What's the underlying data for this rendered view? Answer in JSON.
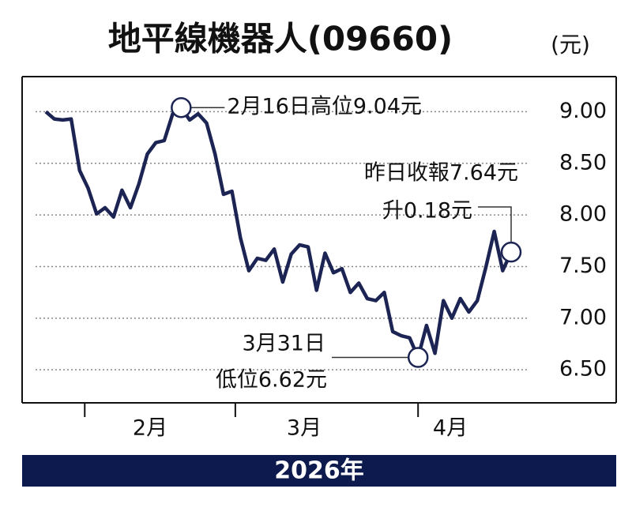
{
  "chart_data": {
    "type": "line",
    "title": "地平線機器人(09660)",
    "unit_label": "(元)",
    "period_label": "2026年",
    "month_labels": [
      "2月",
      "3月",
      "4月"
    ],
    "annotations": [
      "2月16日高位9.04元",
      "昨日收報7.64元",
      "升0.18元",
      "3月31日",
      "低位6.62元"
    ],
    "color": "#1c2453",
    "categories": [
      null,
      null,
      null,
      null,
      null,
      null,
      null,
      null,
      null,
      null,
      null,
      null,
      null,
      null,
      null,
      null,
      null,
      null,
      null,
      null,
      null,
      null,
      null,
      null,
      null,
      null,
      null,
      null,
      null,
      null,
      null,
      null,
      null,
      null,
      null,
      null,
      null,
      null,
      null,
      null,
      null,
      null,
      null,
      null,
      null,
      null,
      null,
      null,
      null,
      null,
      null,
      null,
      null,
      null,
      null,
      null
    ],
    "values": [
      9.0,
      8.93,
      8.92,
      8.93,
      8.43,
      8.26,
      8.01,
      8.07,
      7.98,
      8.24,
      8.07,
      8.3,
      8.59,
      8.7,
      8.72,
      8.98,
      9.04,
      8.92,
      8.98,
      8.89,
      8.59,
      8.2,
      8.23,
      7.78,
      7.46,
      7.58,
      7.56,
      7.67,
      7.35,
      7.62,
      7.71,
      7.69,
      7.27,
      7.63,
      7.44,
      7.48,
      7.25,
      7.34,
      7.19,
      7.17,
      7.25,
      6.87,
      6.83,
      6.81,
      6.62,
      6.93,
      6.66,
      7.17,
      7.0,
      7.19,
      7.06,
      7.17,
      7.49,
      7.84,
      7.46,
      7.64
    ],
    "ylim": [
      6.18,
      9.34
    ],
    "yticks": [
      {
        "value": 9,
        "label": "9.00"
      },
      {
        "value": 8.5,
        "label": "8.50"
      },
      {
        "value": 8,
        "label": "8.00"
      },
      {
        "value": 7.5,
        "label": "7.50"
      },
      {
        "value": 7,
        "label": "7.00"
      },
      {
        "value": 6.5,
        "label": "6.50"
      }
    ],
    "grid": true
  }
}
